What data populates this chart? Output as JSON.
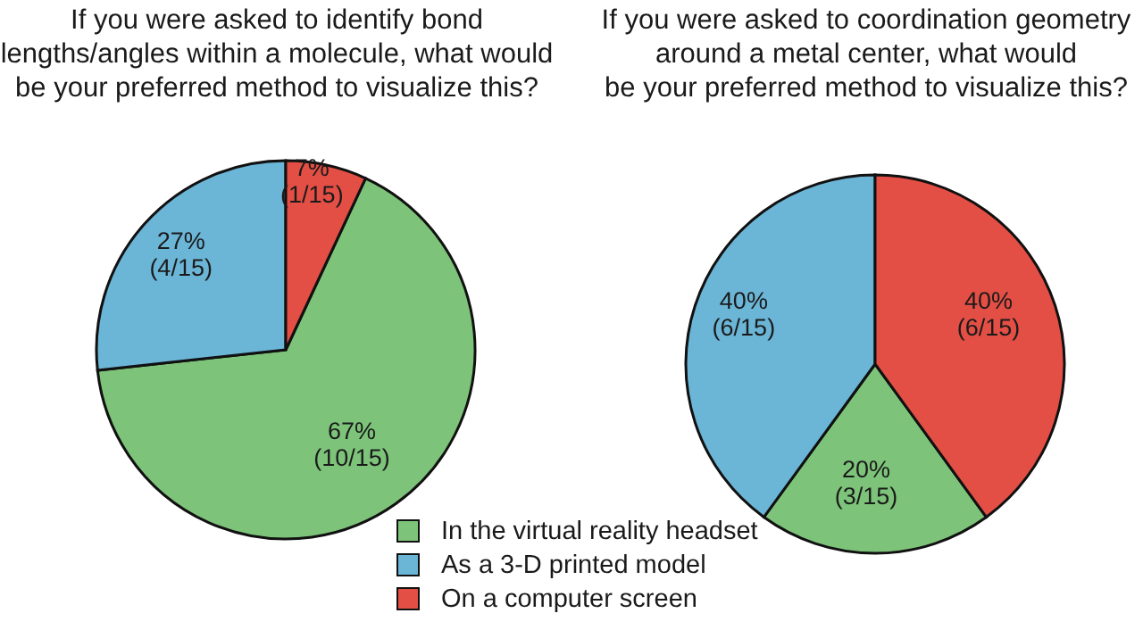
{
  "chart_data": [
    {
      "type": "pie",
      "title": "If you were asked to identify bond\nlengths/angles within a molecule, what would\nbe your preferred method to visualize this?",
      "categories": [
        "In the virtual reality headset",
        "As a 3-D printed model",
        "On a computer screen"
      ],
      "values": [
        67,
        27,
        7
      ],
      "colors": [
        "#7dc47a",
        "#6bb5d6",
        "#e34f45"
      ],
      "value_labels": [
        "67%\n(10/15)",
        "27%\n(4/15)",
        "7%\n(1/15)"
      ],
      "legend": "bottom"
    },
    {
      "type": "pie",
      "title": "If you were asked to coordination geometry\naround a metal center, what would\nbe your preferred method to visualize this?",
      "categories": [
        null,
        null,
        null
      ],
      "values": [
        20,
        40,
        40
      ],
      "colors": [
        "#7dc47a",
        "#6bb5d6",
        "#e34f45"
      ],
      "value_labels": [
        "20%\n(3/15)",
        "40%\n(6/15)",
        "40%\n(6/15)"
      ],
      "legend": false
    }
  ]
}
